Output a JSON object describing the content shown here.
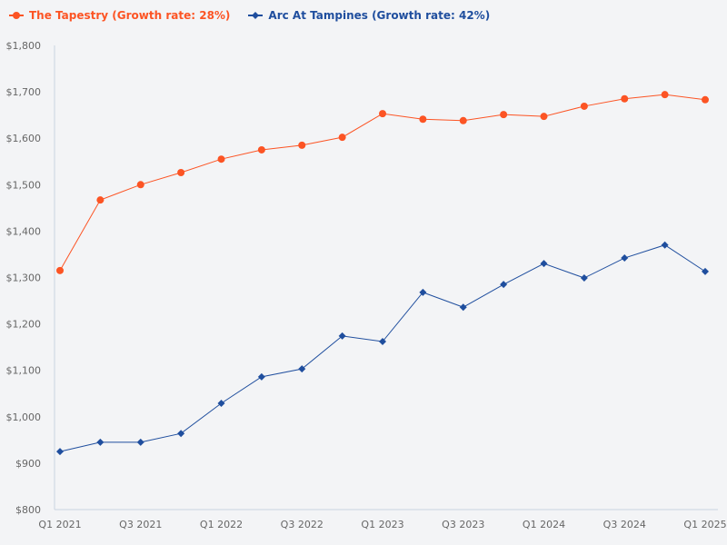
{
  "chart_data": {
    "type": "line",
    "title": "",
    "xlabel": "",
    "ylabel": "",
    "ylim": [
      800,
      1800
    ],
    "yticks": [
      "$800",
      "$900",
      "$1,000",
      "$1,100",
      "$1,200",
      "$1,300",
      "$1,400",
      "$1,500",
      "$1,600",
      "$1,700",
      "$1,800"
    ],
    "grid": false,
    "legend_placement": "top-left",
    "x": [
      "Q1 2021",
      "Q2 2021",
      "Q3 2021",
      "Q4 2021",
      "Q1 2022",
      "Q2 2022",
      "Q3 2022",
      "Q4 2022",
      "Q1 2023",
      "Q2 2023",
      "Q3 2023",
      "Q4 2023",
      "Q1 2024",
      "Q2 2024",
      "Q3 2024",
      "Q4 2024",
      "Q1 2025"
    ],
    "xtick_labels": [
      "Q1 2021",
      "Q3 2021",
      "Q1 2022",
      "Q3 2022",
      "Q1 2023",
      "Q3 2023",
      "Q1 2024",
      "Q3 2024",
      "Q1 2025"
    ],
    "series": [
      {
        "name": "The Tapestry (Growth rate: 28%)",
        "color": "#fc5424",
        "marker": "circle",
        "values": [
          1315,
          1467,
          1500,
          1526,
          1555,
          1575,
          1585,
          1602,
          1653,
          1641,
          1638,
          1651,
          1647,
          1669,
          1685,
          1694,
          1683
        ]
      },
      {
        "name": "Arc At Tampines (Growth rate: 42%)",
        "color": "#1f4e9e",
        "marker": "diamond",
        "values": [
          925,
          945,
          945,
          964,
          1029,
          1086,
          1103,
          1174,
          1162,
          1268,
          1236,
          1285,
          1330,
          1299,
          1342,
          1370,
          1313
        ]
      }
    ]
  }
}
